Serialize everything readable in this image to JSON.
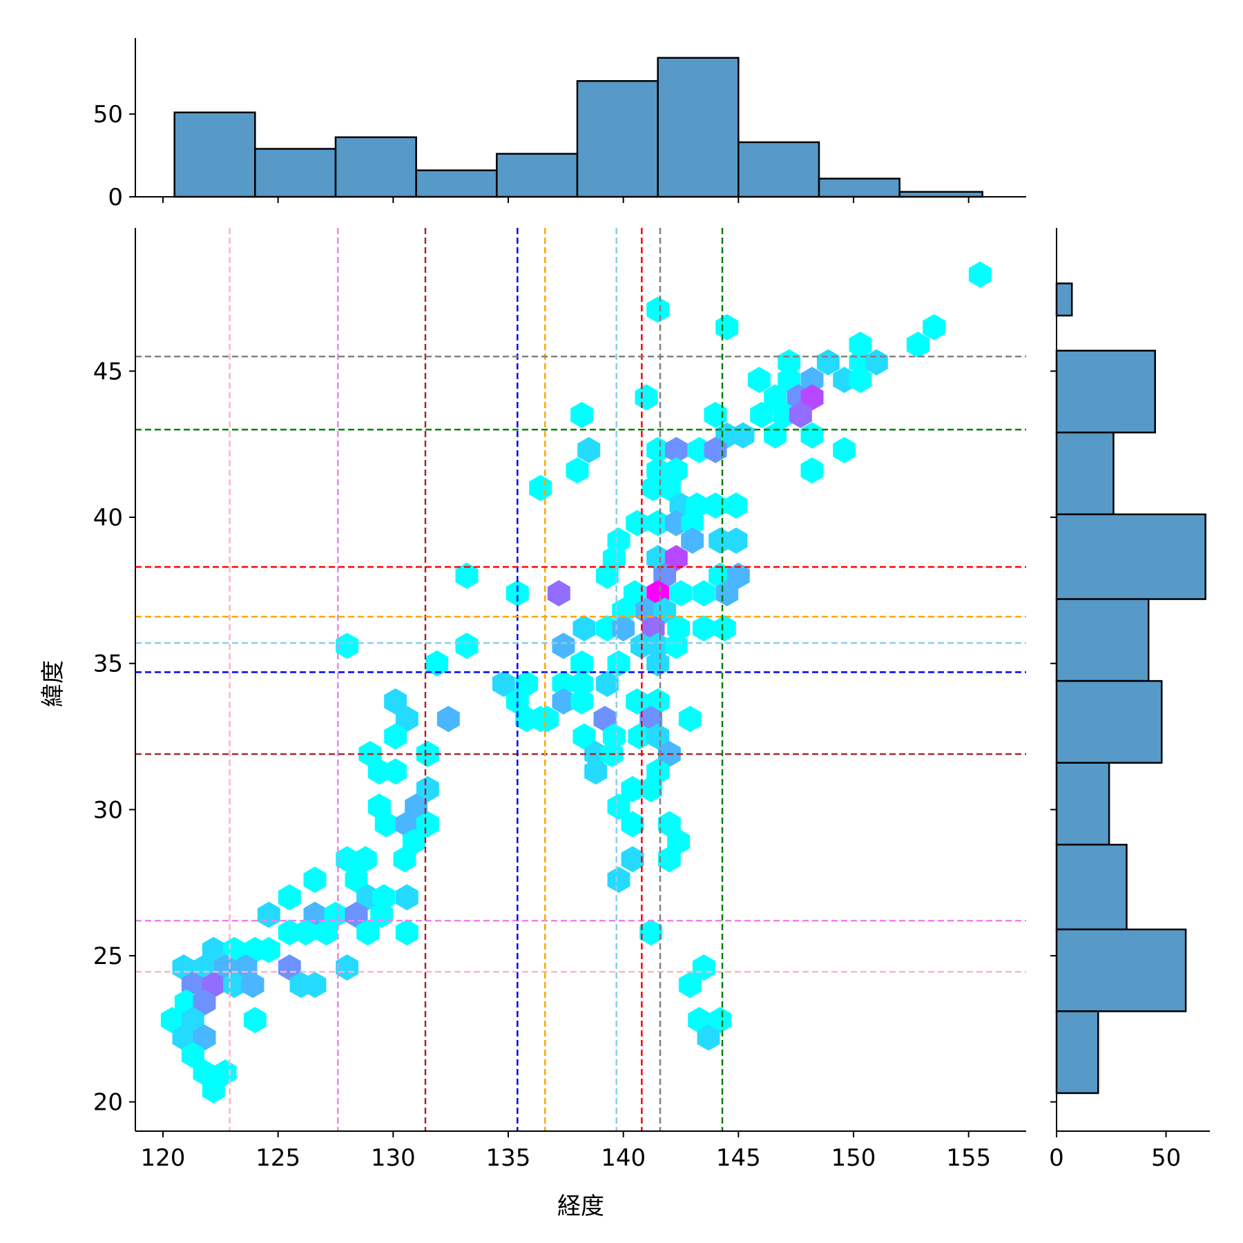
{
  "chart_data": {
    "type": "hexbin-joint",
    "xlabel": "経度",
    "ylabel": "緯度",
    "xlim": [
      118.8,
      157.5
    ],
    "ylim": [
      19.0,
      49.9
    ],
    "xticks": [
      120,
      125,
      130,
      135,
      140,
      145,
      150,
      155
    ],
    "yticks": [
      20,
      25,
      30,
      35,
      40,
      45
    ],
    "colormap": [
      "#00ffff",
      "#ff00ff"
    ],
    "hexbins": [
      [
        155.5,
        48.3,
        1
      ],
      [
        141.5,
        47.1,
        1
      ],
      [
        144.5,
        46.5,
        1
      ],
      [
        153.5,
        46.5,
        1
      ],
      [
        152.8,
        45.9,
        1
      ],
      [
        150.3,
        45.9,
        1
      ],
      [
        147.2,
        45.3,
        1
      ],
      [
        148.9,
        45.3,
        2
      ],
      [
        150.3,
        45.3,
        1
      ],
      [
        151.0,
        45.3,
        2
      ],
      [
        145.9,
        44.7,
        1
      ],
      [
        147.2,
        44.7,
        1
      ],
      [
        148.2,
        44.7,
        3
      ],
      [
        149.6,
        44.7,
        2
      ],
      [
        150.3,
        44.7,
        1
      ],
      [
        146.6,
        44.1,
        1
      ],
      [
        147.6,
        44.1,
        4
      ],
      [
        148.2,
        44.1,
        6
      ],
      [
        141.0,
        44.1,
        1
      ],
      [
        138.2,
        43.5,
        1
      ],
      [
        144.0,
        43.5,
        1
      ],
      [
        146.0,
        43.5,
        1
      ],
      [
        147.0,
        43.5,
        1
      ],
      [
        147.7,
        43.5,
        5
      ],
      [
        144.5,
        42.8,
        2
      ],
      [
        145.2,
        42.8,
        2
      ],
      [
        146.6,
        42.8,
        1
      ],
      [
        148.2,
        42.8,
        1
      ],
      [
        138.5,
        42.3,
        2
      ],
      [
        141.5,
        42.3,
        1
      ],
      [
        142.3,
        42.3,
        4
      ],
      [
        143.3,
        42.3,
        1
      ],
      [
        144.0,
        42.3,
        4
      ],
      [
        149.6,
        42.3,
        1
      ],
      [
        138.0,
        41.6,
        1
      ],
      [
        141.5,
        41.6,
        1
      ],
      [
        142.3,
        41.6,
        1
      ],
      [
        148.2,
        41.6,
        1
      ],
      [
        136.4,
        41.0,
        1
      ],
      [
        141.3,
        41.0,
        1
      ],
      [
        142.0,
        41.0,
        1
      ],
      [
        142.5,
        40.4,
        2
      ],
      [
        143.2,
        40.4,
        1
      ],
      [
        144.0,
        40.4,
        1
      ],
      [
        144.9,
        40.4,
        1
      ],
      [
        140.6,
        39.8,
        1
      ],
      [
        141.5,
        39.8,
        1
      ],
      [
        142.3,
        39.8,
        3
      ],
      [
        143.0,
        39.8,
        1
      ],
      [
        139.8,
        39.2,
        1
      ],
      [
        143.0,
        39.2,
        3
      ],
      [
        144.2,
        39.2,
        2
      ],
      [
        144.9,
        39.2,
        2
      ],
      [
        139.6,
        38.6,
        1
      ],
      [
        141.5,
        38.6,
        2
      ],
      [
        142.3,
        38.6,
        6
      ],
      [
        139.3,
        38.0,
        1
      ],
      [
        141.8,
        38.0,
        4
      ],
      [
        144.2,
        38.0,
        1
      ],
      [
        145.0,
        38.0,
        3
      ],
      [
        133.2,
        38.0,
        1
      ],
      [
        137.2,
        37.4,
        5
      ],
      [
        135.4,
        37.4,
        1
      ],
      [
        140.5,
        37.4,
        1
      ],
      [
        141.5,
        37.4,
        8
      ],
      [
        142.5,
        37.4,
        1
      ],
      [
        143.5,
        37.4,
        1
      ],
      [
        144.5,
        37.4,
        3
      ],
      [
        140.0,
        36.8,
        1
      ],
      [
        141.0,
        36.8,
        3
      ],
      [
        141.8,
        36.8,
        2
      ],
      [
        139.3,
        36.2,
        1
      ],
      [
        140.0,
        36.2,
        3
      ],
      [
        141.3,
        36.2,
        5
      ],
      [
        141.5,
        35.6,
        2
      ],
      [
        142.4,
        36.2,
        1
      ],
      [
        143.5,
        36.2,
        1
      ],
      [
        144.4,
        36.2,
        1
      ],
      [
        138.3,
        36.2,
        2
      ],
      [
        137.4,
        35.6,
        3
      ],
      [
        140.8,
        35.6,
        2
      ],
      [
        141.5,
        35.0,
        2
      ],
      [
        142.3,
        35.6,
        1
      ],
      [
        128.0,
        35.6,
        1
      ],
      [
        133.2,
        35.6,
        1
      ],
      [
        131.9,
        35.0,
        1
      ],
      [
        138.2,
        35.0,
        1
      ],
      [
        139.8,
        35.0,
        1
      ],
      [
        134.8,
        34.3,
        2
      ],
      [
        135.8,
        34.3,
        1
      ],
      [
        137.4,
        34.3,
        1
      ],
      [
        138.2,
        34.3,
        1
      ],
      [
        139.3,
        34.3,
        2
      ],
      [
        135.4,
        33.7,
        1
      ],
      [
        136.4,
        33.1,
        1
      ],
      [
        137.4,
        33.7,
        3
      ],
      [
        138.2,
        33.7,
        1
      ],
      [
        140.6,
        33.7,
        1
      ],
      [
        141.5,
        33.7,
        1
      ],
      [
        130.1,
        33.7,
        2
      ],
      [
        130.6,
        33.1,
        2
      ],
      [
        132.4,
        33.1,
        3
      ],
      [
        135.8,
        33.1,
        1
      ],
      [
        136.7,
        33.1,
        1
      ],
      [
        139.2,
        33.1,
        4
      ],
      [
        141.2,
        33.1,
        4
      ],
      [
        142.9,
        33.1,
        1
      ],
      [
        138.3,
        32.5,
        1
      ],
      [
        139.6,
        32.5,
        1
      ],
      [
        140.7,
        32.5,
        1
      ],
      [
        141.5,
        32.5,
        2
      ],
      [
        130.1,
        32.5,
        1
      ],
      [
        129.0,
        31.9,
        1
      ],
      [
        131.5,
        31.9,
        1
      ],
      [
        138.8,
        31.9,
        2
      ],
      [
        139.5,
        31.9,
        1
      ],
      [
        142.0,
        31.9,
        3
      ],
      [
        129.4,
        31.3,
        1
      ],
      [
        130.1,
        31.3,
        1
      ],
      [
        138.8,
        31.3,
        2
      ],
      [
        141.5,
        31.3,
        1
      ],
      [
        140.4,
        30.7,
        1
      ],
      [
        141.2,
        30.7,
        1
      ],
      [
        131.5,
        30.7,
        2
      ],
      [
        129.4,
        30.1,
        1
      ],
      [
        131.0,
        30.1,
        3
      ],
      [
        139.8,
        30.1,
        1
      ],
      [
        140.4,
        29.5,
        1
      ],
      [
        129.7,
        29.5,
        1
      ],
      [
        130.6,
        29.5,
        3
      ],
      [
        131.5,
        29.5,
        1
      ],
      [
        142.0,
        29.5,
        1
      ],
      [
        142.4,
        28.9,
        1
      ],
      [
        130.9,
        28.9,
        1
      ],
      [
        128.0,
        28.3,
        1
      ],
      [
        128.8,
        28.3,
        1
      ],
      [
        130.5,
        28.3,
        1
      ],
      [
        140.4,
        28.3,
        2
      ],
      [
        142.0,
        28.3,
        1
      ],
      [
        128.4,
        27.6,
        1
      ],
      [
        126.6,
        27.6,
        1
      ],
      [
        139.8,
        27.6,
        2
      ],
      [
        128.9,
        27.0,
        2
      ],
      [
        125.5,
        27.0,
        1
      ],
      [
        129.6,
        27.0,
        1
      ],
      [
        130.6,
        27.0,
        2
      ],
      [
        124.6,
        26.4,
        2
      ],
      [
        126.6,
        26.4,
        3
      ],
      [
        127.5,
        26.4,
        1
      ],
      [
        128.4,
        26.4,
        4
      ],
      [
        129.5,
        26.4,
        1
      ],
      [
        125.5,
        25.8,
        1
      ],
      [
        126.2,
        25.8,
        1
      ],
      [
        127.1,
        25.8,
        1
      ],
      [
        128.9,
        25.8,
        1
      ],
      [
        130.6,
        25.8,
        1
      ],
      [
        141.2,
        25.8,
        1
      ],
      [
        124.6,
        25.2,
        1
      ],
      [
        122.2,
        25.2,
        2
      ],
      [
        123.1,
        25.2,
        1
      ],
      [
        124.0,
        25.2,
        1
      ],
      [
        120.9,
        24.6,
        2
      ],
      [
        121.8,
        24.6,
        2
      ],
      [
        122.7,
        24.6,
        3
      ],
      [
        123.6,
        24.6,
        3
      ],
      [
        125.5,
        24.6,
        4
      ],
      [
        128.0,
        24.6,
        2
      ],
      [
        143.5,
        24.6,
        1
      ],
      [
        121.3,
        24.0,
        4
      ],
      [
        122.2,
        24.0,
        5
      ],
      [
        123.1,
        24.0,
        2
      ],
      [
        123.9,
        24.0,
        3
      ],
      [
        126.0,
        24.0,
        2
      ],
      [
        126.6,
        24.0,
        2
      ],
      [
        142.9,
        24.0,
        1
      ],
      [
        121.0,
        23.4,
        1
      ],
      [
        121.8,
        23.4,
        4
      ],
      [
        120.4,
        22.8,
        1
      ],
      [
        121.3,
        22.8,
        2
      ],
      [
        124.0,
        22.8,
        1
      ],
      [
        143.3,
        22.8,
        1
      ],
      [
        144.2,
        22.8,
        1
      ],
      [
        120.9,
        22.2,
        2
      ],
      [
        121.8,
        22.2,
        3
      ],
      [
        143.7,
        22.2,
        2
      ],
      [
        121.3,
        21.6,
        1
      ],
      [
        121.8,
        21.0,
        1
      ],
      [
        122.7,
        21.0,
        1
      ],
      [
        122.2,
        20.4,
        1
      ]
    ],
    "ref_lines": [
      {
        "lon": 122.9,
        "lat": 24.45,
        "color": "#ffb6c1"
      },
      {
        "lon": 127.6,
        "lat": 26.2,
        "color": "#ee82ee"
      },
      {
        "lon": 131.4,
        "lat": 31.9,
        "color": "#a52a2a"
      },
      {
        "lon": 135.4,
        "lat": 34.7,
        "color": "#0000ff"
      },
      {
        "lon": 136.6,
        "lat": 36.6,
        "color": "#ffa500"
      },
      {
        "lon": 139.7,
        "lat": 35.7,
        "color": "#87ceeb"
      },
      {
        "lon": 140.8,
        "lat": 38.3,
        "color": "#ff0000"
      },
      {
        "lon": 141.6,
        "lat": 45.5,
        "color": "#808080"
      },
      {
        "lon": 144.3,
        "lat": 43.0,
        "color": "#008000"
      }
    ],
    "top_histogram": {
      "yticks": [
        0,
        50
      ],
      "ylim": [
        0,
        96
      ],
      "bins": [
        [
          120.5,
          124.0,
          51
        ],
        [
          124.0,
          127.5,
          29
        ],
        [
          127.5,
          131.0,
          36
        ],
        [
          131.0,
          134.5,
          16
        ],
        [
          134.5,
          138.0,
          26
        ],
        [
          138.0,
          141.5,
          70
        ],
        [
          141.5,
          145.0,
          84
        ],
        [
          145.0,
          148.5,
          33
        ],
        [
          148.5,
          152.0,
          11
        ],
        [
          152.0,
          155.6,
          3
        ]
      ]
    },
    "right_histogram": {
      "xticks": [
        0,
        50
      ],
      "xlim": [
        0,
        70
      ],
      "bins": [
        [
          48.0,
          46.9,
          7
        ],
        [
          45.7,
          42.9,
          45
        ],
        [
          42.9,
          40.1,
          26
        ],
        [
          40.1,
          37.2,
          68
        ],
        [
          37.2,
          34.4,
          42
        ],
        [
          34.4,
          31.6,
          48
        ],
        [
          31.6,
          28.8,
          24
        ],
        [
          28.8,
          25.9,
          32
        ],
        [
          25.9,
          23.1,
          59
        ],
        [
          23.1,
          20.3,
          19
        ]
      ]
    }
  }
}
